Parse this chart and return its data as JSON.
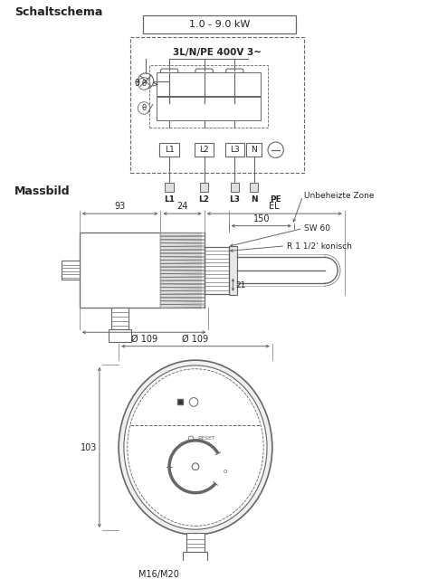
{
  "bg_color": "#ffffff",
  "line_color": "#666666",
  "text_color": "#222222",
  "schaltschema_label": "Schaltschema",
  "massbild_label": "Massbild",
  "schema_title": "1.0 - 9.0 kW",
  "schema_subtitle": "3L/N/PE 400V 3~",
  "terminal_labels": [
    "L1",
    "L2",
    "L3",
    "N",
    "PE"
  ],
  "dim_93": "93",
  "dim_24": "24",
  "dim_EL": "EL",
  "dim_150": "150",
  "dim_21": "21",
  "dim_109": "Ø 109",
  "dim_103": "103",
  "label_unbeheizte": "Unbeheizte Zone",
  "label_r112": "R 1 1/2’ konisch",
  "label_sw60": "SW 60",
  "label_m1620": "M16/M20"
}
